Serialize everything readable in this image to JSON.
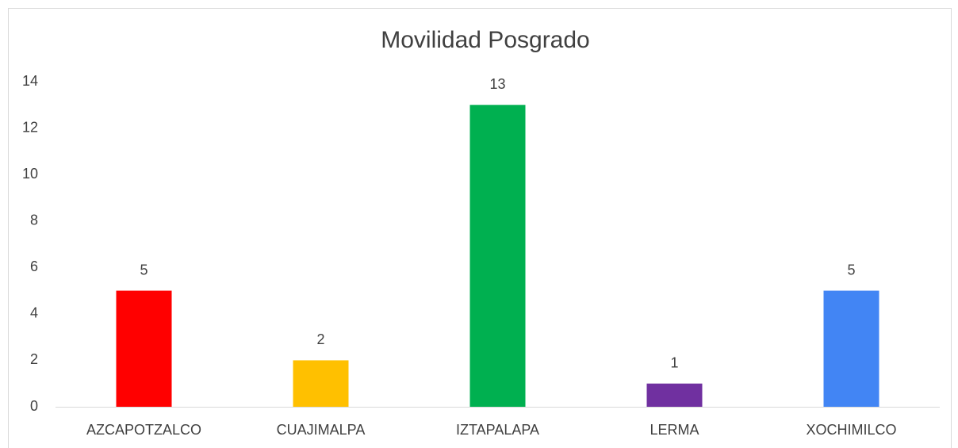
{
  "chart_data": {
    "type": "bar",
    "title": "Movilidad Posgrado",
    "categories": [
      "AZCAPOTZALCO",
      "CUAJIMALPA",
      "IZTAPALAPA",
      "LERMA",
      "XOCHIMILCO"
    ],
    "values": [
      5,
      2,
      13,
      1,
      5
    ],
    "colors": [
      "#ff0000",
      "#ffc000",
      "#00b050",
      "#7030a0",
      "#4285f4"
    ],
    "ylim": [
      0,
      14
    ],
    "yticks": [
      0,
      2,
      4,
      6,
      8,
      10,
      12,
      14
    ],
    "grid": false,
    "data_labels": true
  }
}
